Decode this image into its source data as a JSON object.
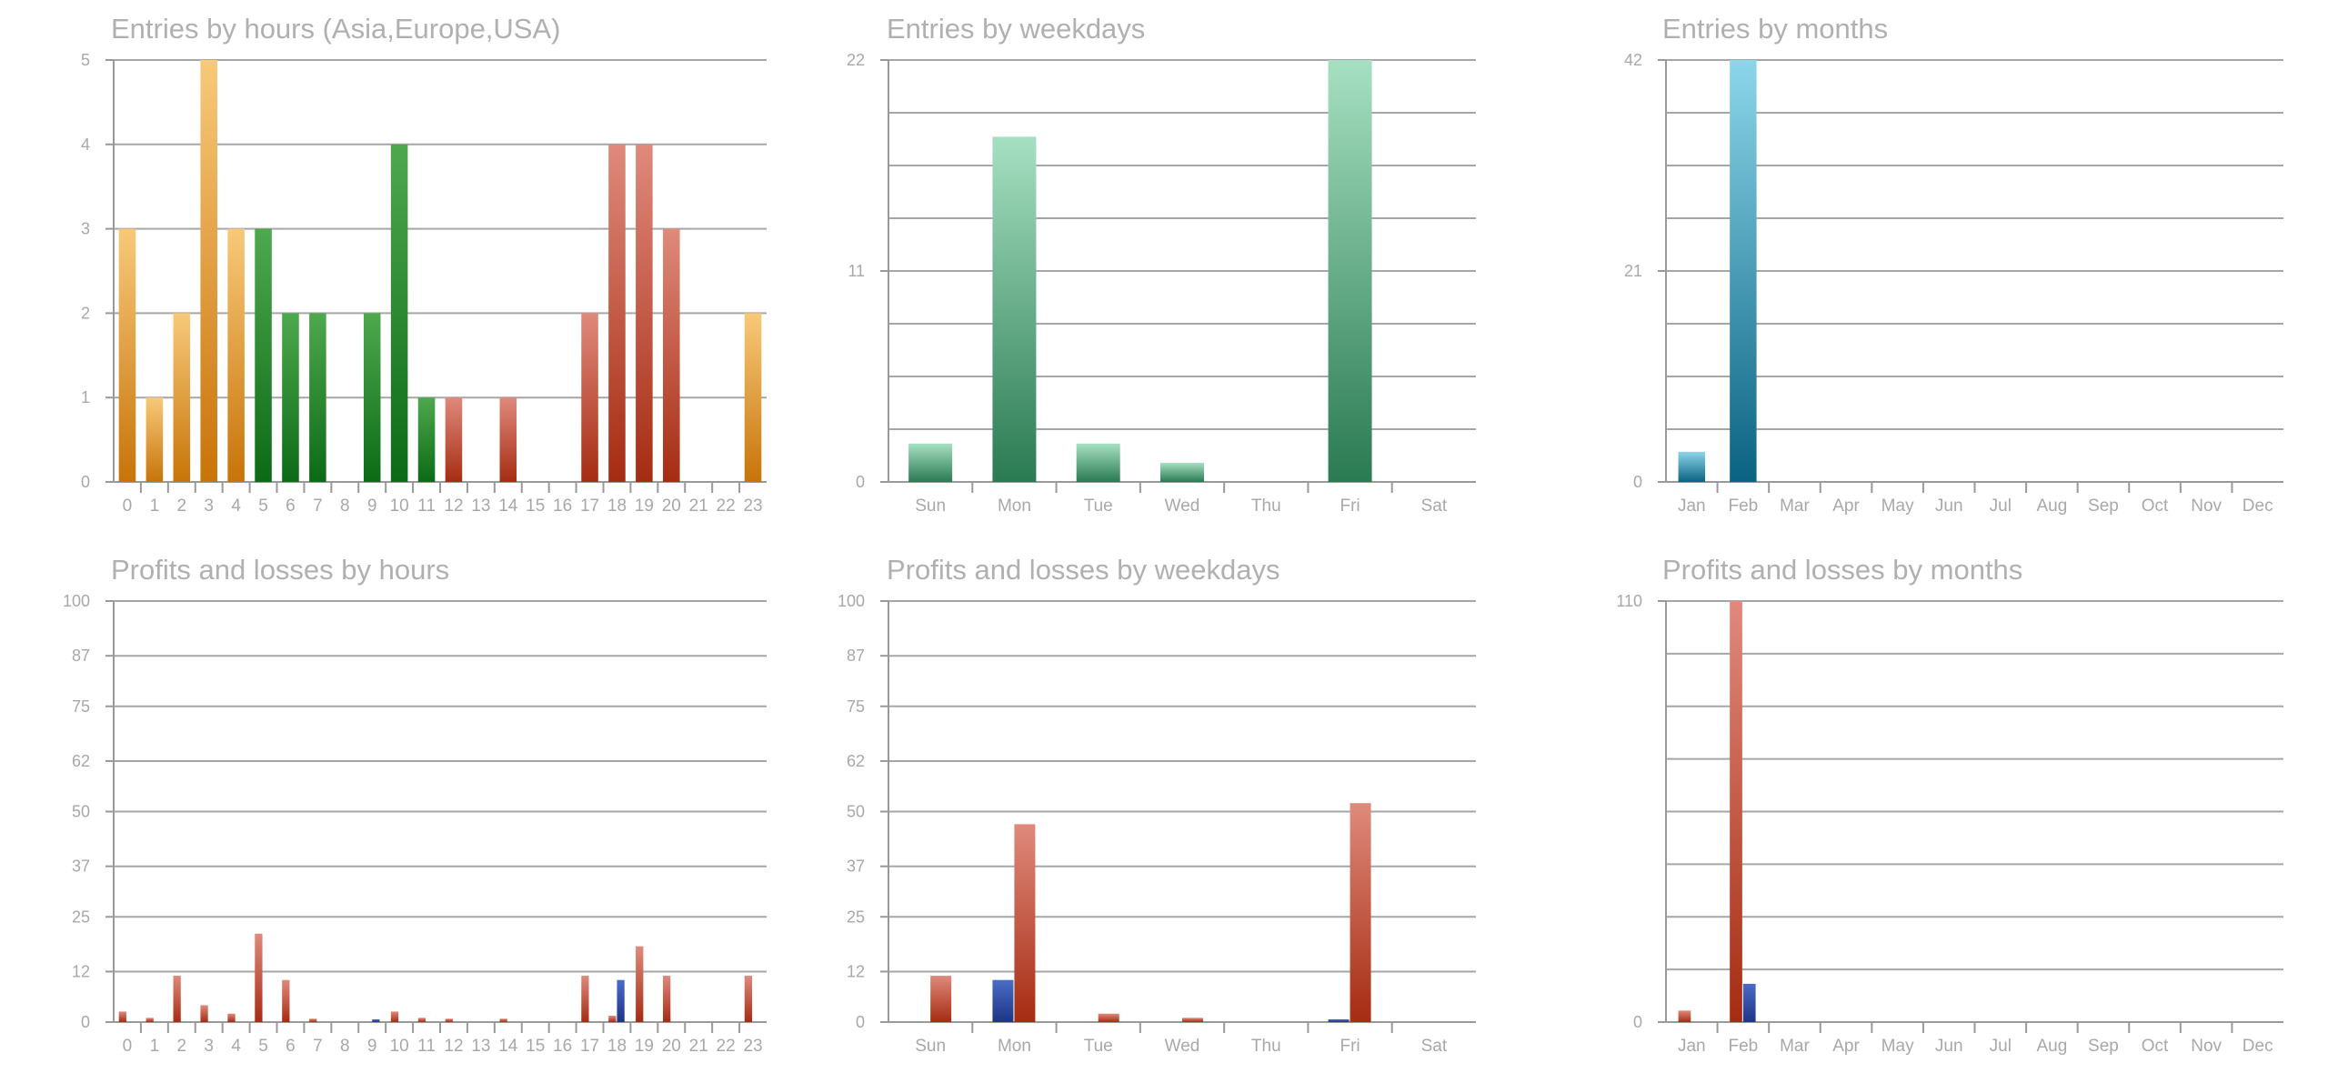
{
  "colors": {
    "asia_top": "#f8c97a",
    "asia_bottom": "#c87408",
    "europe_top": "#4ea84e",
    "europe_bottom": "#0c6a16",
    "usa_top": "#df8a7c",
    "usa_bottom": "#a52c12",
    "weekday_top": "#a6e0c2",
    "weekday_bottom": "#2a7a52",
    "month_top": "#8cd6ea",
    "month_bottom": "#0a6382",
    "loss_top": "#4a6cc8",
    "loss_bottom": "#1d3584",
    "gridline": "#a6a6a6",
    "axis": "#999999"
  },
  "chart_data": [
    {
      "id": "entries-hours",
      "type": "bar",
      "title": "Entries by hours (Asia,Europe,USA)",
      "categories": [
        "0",
        "1",
        "2",
        "3",
        "4",
        "5",
        "6",
        "7",
        "8",
        "9",
        "10",
        "11",
        "12",
        "13",
        "14",
        "15",
        "16",
        "17",
        "18",
        "19",
        "20",
        "21",
        "22",
        "23"
      ],
      "values": [
        3,
        1,
        2,
        5,
        3,
        3,
        2,
        2,
        0,
        2,
        4,
        1,
        1,
        0,
        1,
        0,
        0,
        2,
        4,
        4,
        3,
        0,
        0,
        2
      ],
      "bar_color_groups": [
        "asia",
        "asia",
        "asia",
        "asia",
        "asia",
        "europe",
        "europe",
        "europe",
        "europe",
        "europe",
        "europe",
        "europe",
        "usa",
        "usa",
        "usa",
        "usa",
        "usa",
        "usa",
        "usa",
        "usa",
        "usa",
        "usa",
        "usa",
        "asia"
      ],
      "ylim": [
        0,
        5
      ],
      "yticks": [
        0,
        1,
        2,
        3,
        4,
        5
      ],
      "grid": true
    },
    {
      "id": "entries-weekdays",
      "type": "bar",
      "title": "Entries by weekdays",
      "categories": [
        "Sun",
        "Mon",
        "Tue",
        "Wed",
        "Thu",
        "Fri",
        "Sat"
      ],
      "values": [
        2,
        18,
        2,
        1,
        0,
        22,
        0
      ],
      "ylim": [
        0,
        22
      ],
      "yticks": [
        0,
        11,
        22
      ],
      "grid": true
    },
    {
      "id": "entries-months",
      "type": "bar",
      "title": "Entries by months",
      "categories": [
        "Jan",
        "Feb",
        "Mar",
        "Apr",
        "May",
        "Jun",
        "Jul",
        "Aug",
        "Sep",
        "Oct",
        "Nov",
        "Dec"
      ],
      "values": [
        3,
        42,
        0,
        0,
        0,
        0,
        0,
        0,
        0,
        0,
        0,
        0
      ],
      "ylim": [
        0,
        42
      ],
      "yticks": [
        0,
        21,
        42
      ],
      "grid": true
    },
    {
      "id": "pl-hours",
      "type": "bar",
      "title": "Profits and losses by hours",
      "categories": [
        "0",
        "1",
        "2",
        "3",
        "4",
        "5",
        "6",
        "7",
        "8",
        "9",
        "10",
        "11",
        "12",
        "13",
        "14",
        "15",
        "16",
        "17",
        "18",
        "19",
        "20",
        "21",
        "22",
        "23"
      ],
      "series": [
        {
          "kind": "profit",
          "values": [
            2.5,
            1,
            11,
            4,
            2,
            21,
            10,
            0.8,
            0,
            0,
            2.5,
            1,
            0.8,
            0,
            0.8,
            0,
            0,
            11,
            1.5,
            18,
            11,
            0,
            0,
            11
          ]
        },
        {
          "kind": "loss",
          "values": [
            0,
            0,
            0,
            0,
            0,
            0,
            0,
            0,
            0,
            0.3,
            0,
            0,
            0,
            0,
            0,
            0,
            0,
            0,
            10,
            0,
            0,
            0,
            0,
            0
          ]
        }
      ],
      "ylim": [
        0,
        100
      ],
      "yticks": [
        0,
        12,
        25,
        37,
        50,
        62,
        75,
        87,
        100
      ],
      "grid": true
    },
    {
      "id": "pl-weekdays",
      "type": "bar",
      "title": "Profits and losses by weekdays",
      "categories": [
        "Sun",
        "Mon",
        "Tue",
        "Wed",
        "Thu",
        "Fri",
        "Sat"
      ],
      "series": [
        {
          "kind": "loss",
          "values": [
            0,
            10,
            0,
            0,
            0,
            0.3,
            0
          ]
        },
        {
          "kind": "profit",
          "values": [
            11,
            47,
            2,
            1,
            0,
            52,
            0
          ]
        }
      ],
      "ylim": [
        0,
        100
      ],
      "yticks": [
        0,
        12,
        25,
        37,
        50,
        62,
        75,
        87,
        100
      ],
      "grid": true
    },
    {
      "id": "pl-months",
      "type": "bar",
      "title": "Profits and losses by months",
      "categories": [
        "Jan",
        "Feb",
        "Mar",
        "Apr",
        "May",
        "Jun",
        "Jul",
        "Aug",
        "Sep",
        "Oct",
        "Nov",
        "Dec"
      ],
      "series": [
        {
          "kind": "profit",
          "values": [
            3,
            110,
            0,
            0,
            0,
            0,
            0,
            0,
            0,
            0,
            0,
            0
          ]
        },
        {
          "kind": "loss",
          "values": [
            0,
            10,
            0,
            0,
            0,
            0,
            0,
            0,
            0,
            0,
            0,
            0
          ]
        }
      ],
      "ylim": [
        0,
        110
      ],
      "yticks": [
        0,
        110
      ],
      "grid": true
    }
  ]
}
